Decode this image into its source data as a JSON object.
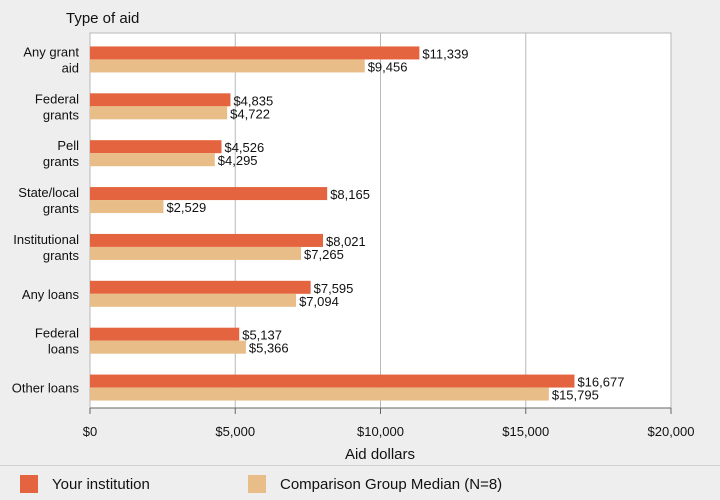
{
  "chart_data": {
    "type": "bar",
    "orientation": "horizontal",
    "title": "Type of aid",
    "xlabel": "Aid dollars",
    "ylabel": "Type of aid",
    "xlim": [
      0,
      20000
    ],
    "xticks": [
      0,
      5000,
      10000,
      15000,
      20000
    ],
    "xtick_labels": [
      "$0",
      "$5,000",
      "$10,000",
      "$15,000",
      "$20,000"
    ],
    "grid": true,
    "legend_position": "bottom",
    "categories": [
      [
        "Any grant",
        "aid"
      ],
      [
        "Federal",
        "grants"
      ],
      [
        "Pell",
        "grants"
      ],
      [
        "State/local",
        "grants"
      ],
      [
        "Institutional",
        "grants"
      ],
      [
        "Any loans"
      ],
      [
        "Federal",
        "loans"
      ],
      [
        "Other loans"
      ]
    ],
    "series": [
      {
        "name": "Your institution",
        "color": "#e4643f",
        "values": [
          11339,
          4835,
          4526,
          8165,
          8021,
          7595,
          5137,
          16677
        ],
        "labels": [
          "$11,339",
          "$4,835",
          "$4,526",
          "$8,165",
          "$8,021",
          "$7,595",
          "$5,137",
          "$16,677"
        ]
      },
      {
        "name": "Comparison Group Median (N=8)",
        "color": "#e8bd87",
        "values": [
          9456,
          4722,
          4295,
          2529,
          7265,
          7094,
          5366,
          15795
        ],
        "labels": [
          "$9,456",
          "$4,722",
          "$4,295",
          "$2,529",
          "$7,265",
          "$7,094",
          "$5,366",
          "$15,795"
        ]
      }
    ]
  },
  "legend": {
    "items": [
      {
        "label": "Your institution",
        "color": "#e4643f"
      },
      {
        "label": "Comparison Group Median (N=8)",
        "color": "#e8bd87"
      }
    ]
  }
}
